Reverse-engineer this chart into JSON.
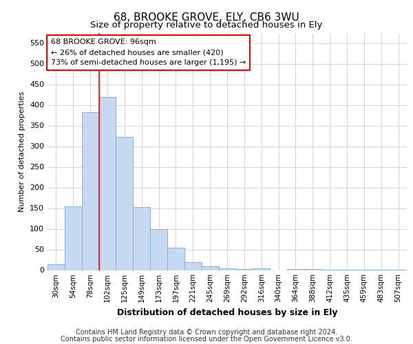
{
  "title": "68, BROOKE GROVE, ELY, CB6 3WU",
  "subtitle": "Size of property relative to detached houses in Ely",
  "xlabel": "Distribution of detached houses by size in Ely",
  "ylabel": "Number of detached properties",
  "categories": [
    "30sqm",
    "54sqm",
    "78sqm",
    "102sqm",
    "125sqm",
    "149sqm",
    "173sqm",
    "197sqm",
    "221sqm",
    "245sqm",
    "269sqm",
    "292sqm",
    "316sqm",
    "340sqm",
    "364sqm",
    "388sqm",
    "412sqm",
    "435sqm",
    "459sqm",
    "483sqm",
    "507sqm"
  ],
  "values": [
    14,
    155,
    382,
    420,
    322,
    152,
    100,
    55,
    20,
    10,
    5,
    3,
    5,
    0,
    2,
    2,
    1,
    1,
    1,
    1,
    1
  ],
  "bar_color": "#c6d9f0",
  "bar_edge_color": "#7aaace",
  "ylim": [
    0,
    575
  ],
  "yticks": [
    0,
    50,
    100,
    150,
    200,
    250,
    300,
    350,
    400,
    450,
    500,
    550
  ],
  "annotation_line1": "68 BROOKE GROVE: 96sqm",
  "annotation_line2": "← 26% of detached houses are smaller (420)",
  "annotation_line3": "73% of semi-detached houses are larger (1,195) →",
  "footer_line1": "Contains HM Land Registry data © Crown copyright and database right 2024.",
  "footer_line2": "Contains public sector information licensed under the Open Government Licence v3.0.",
  "background_color": "#ffffff",
  "grid_color": "#cccccc",
  "title_fontsize": 11,
  "subtitle_fontsize": 9.5,
  "annotation_fontsize": 8,
  "footer_fontsize": 7,
  "ylabel_fontsize": 8,
  "xlabel_fontsize": 9,
  "tick_fontsize": 7.5
}
